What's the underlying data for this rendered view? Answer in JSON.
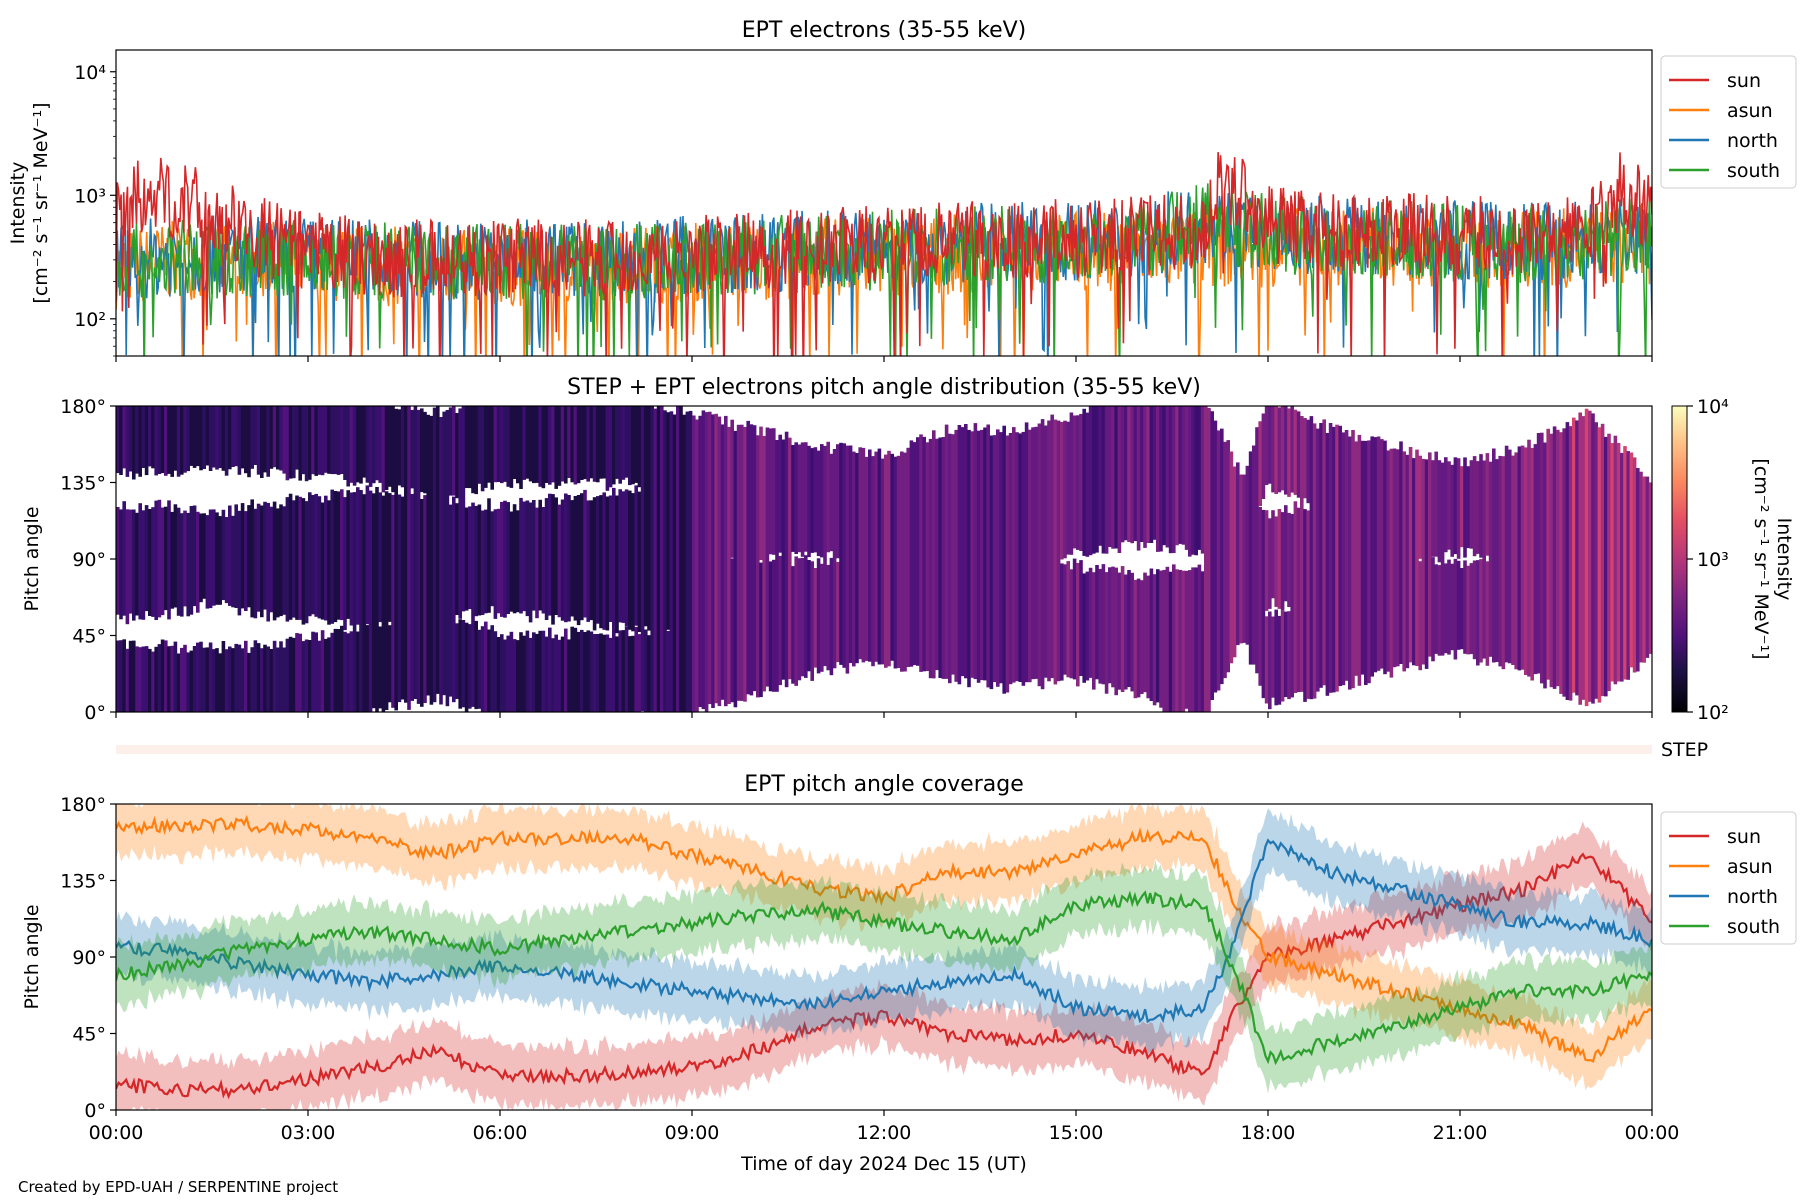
{
  "credit": "Created by EPD-UAH / SERPENTINE project",
  "x_axis_label": "Time of day 2024 Dec 15 (UT)",
  "x_tick_labels": [
    "00:00",
    "03:00",
    "06:00",
    "09:00",
    "12:00",
    "15:00",
    "18:00",
    "21:00",
    "00:00"
  ],
  "step_label": "STEP",
  "chart_data": [
    {
      "type": "line",
      "title": "EPT electrons (35-55 keV)",
      "ylabel_line1": "Intensity",
      "ylabel_line2": "[cm⁻² s⁻¹ sr⁻¹ MeV⁻¹]",
      "yscale": "log",
      "ylim": [
        50,
        15000
      ],
      "y_tick_labels": [
        "10²",
        "10³",
        "10⁴"
      ],
      "xlabel": "",
      "xlim_hours": [
        0,
        24
      ],
      "legend": "outside-right",
      "series": [
        {
          "name": "sun",
          "color": "#d62728",
          "x_hours": [
            0,
            0.5,
            1,
            2,
            3,
            4,
            5,
            6,
            7,
            8,
            9,
            10,
            11,
            12,
            13,
            14,
            15,
            16,
            17,
            17.3,
            18,
            19,
            20,
            21,
            22,
            23,
            23.5,
            24
          ],
          "y": [
            800,
            1000,
            900,
            500,
            350,
            320,
            300,
            310,
            300,
            320,
            330,
            350,
            380,
            400,
            420,
            430,
            450,
            470,
            500,
            1300,
            600,
            520,
            500,
            480,
            450,
            500,
            1100,
            700
          ]
        },
        {
          "name": "asun",
          "color": "#ff7f0e",
          "x_hours": [
            0,
            1,
            2,
            3,
            4,
            5,
            6,
            7,
            8,
            9,
            10,
            11,
            12,
            13,
            14,
            15,
            16,
            17,
            18,
            19,
            20,
            21,
            22,
            23,
            24
          ],
          "y": [
            250,
            300,
            300,
            280,
            270,
            260,
            260,
            270,
            280,
            290,
            300,
            310,
            320,
            330,
            340,
            350,
            360,
            370,
            380,
            390,
            380,
            370,
            360,
            380,
            400
          ]
        },
        {
          "name": "north",
          "color": "#1f77b4",
          "x_hours": [
            0,
            1,
            2,
            3,
            4,
            5,
            6,
            7,
            8,
            9,
            10,
            11,
            12,
            13,
            14,
            15,
            16,
            17,
            18,
            19,
            20,
            21,
            22,
            23,
            24
          ],
          "y": [
            300,
            320,
            330,
            320,
            310,
            300,
            300,
            310,
            320,
            330,
            340,
            360,
            380,
            400,
            420,
            430,
            440,
            600,
            500,
            470,
            450,
            430,
            420,
            450,
            500
          ]
        },
        {
          "name": "south",
          "color": "#2ca02c",
          "x_hours": [
            0,
            1,
            2,
            3,
            4,
            5,
            6,
            7,
            8,
            9,
            10,
            11,
            12,
            13,
            14,
            15,
            16,
            17,
            18,
            19,
            20,
            21,
            22,
            23,
            24
          ],
          "y": [
            280,
            300,
            310,
            300,
            290,
            280,
            280,
            290,
            300,
            310,
            320,
            340,
            360,
            380,
            400,
            410,
            420,
            650,
            480,
            450,
            430,
            420,
            410,
            440,
            480
          ]
        }
      ]
    },
    {
      "type": "heatmap",
      "title": "STEP + EPT electrons pitch angle distribution (35-55 keV)",
      "ylabel": "Pitch angle",
      "ylim": [
        0,
        180
      ],
      "y_tick_labels": [
        "0°",
        "45°",
        "90°",
        "135°",
        "180°"
      ],
      "xlim_hours": [
        0,
        24
      ],
      "colorscale": "magma",
      "color_log_range": [
        100,
        10000
      ],
      "colorbar_label_line1": "Intensity",
      "colorbar_label_line2": "[cm⁻² s⁻¹ sr⁻¹ MeV⁻¹]",
      "colorbar_tick_labels": [
        "10²",
        "10³",
        "10⁴"
      ]
    },
    {
      "type": "line",
      "title": "EPT pitch angle coverage",
      "ylabel": "Pitch angle",
      "ylim": [
        0,
        180
      ],
      "y_tick_labels": [
        "0°",
        "45°",
        "90°",
        "135°",
        "180°"
      ],
      "xlim_hours": [
        0,
        24
      ],
      "legend": "outside-right",
      "series": [
        {
          "name": "sun",
          "color": "#d62728",
          "x_hours": [
            0,
            1,
            2,
            3,
            4,
            5,
            6,
            7,
            8,
            9,
            10,
            11,
            12,
            13,
            14,
            15,
            16,
            17,
            17.5,
            18,
            19,
            20,
            21,
            22,
            23,
            24
          ],
          "y": [
            15,
            12,
            12,
            18,
            25,
            35,
            20,
            20,
            22,
            25,
            35,
            50,
            55,
            45,
            40,
            45,
            35,
            20,
            60,
            90,
            100,
            110,
            120,
            130,
            150,
            110
          ]
        },
        {
          "name": "asun",
          "color": "#ff7f0e",
          "x_hours": [
            0,
            1,
            2,
            3,
            4,
            5,
            6,
            7,
            8,
            9,
            10,
            11,
            12,
            13,
            14,
            15,
            16,
            17,
            17.5,
            18,
            19,
            20,
            21,
            22,
            23,
            24
          ],
          "y": [
            165,
            168,
            168,
            165,
            160,
            150,
            160,
            160,
            160,
            150,
            140,
            130,
            125,
            140,
            140,
            150,
            160,
            160,
            120,
            90,
            80,
            70,
            60,
            50,
            30,
            60
          ]
        },
        {
          "name": "north",
          "color": "#1f77b4",
          "x_hours": [
            0,
            1,
            2,
            3,
            4,
            5,
            6,
            7,
            8,
            9,
            10,
            11,
            12,
            13,
            14,
            15,
            16,
            17,
            17.5,
            18,
            19,
            20,
            21,
            22,
            23,
            24
          ],
          "y": [
            95,
            95,
            85,
            80,
            75,
            80,
            85,
            80,
            75,
            70,
            65,
            62,
            70,
            75,
            80,
            60,
            55,
            60,
            100,
            160,
            140,
            130,
            120,
            110,
            110,
            100
          ]
        },
        {
          "name": "south",
          "color": "#2ca02c",
          "x_hours": [
            0,
            1,
            2,
            3,
            4,
            5,
            6,
            7,
            8,
            9,
            10,
            11,
            12,
            13,
            14,
            15,
            16,
            17,
            17.5,
            18,
            19,
            20,
            21,
            22,
            23,
            24
          ],
          "y": [
            80,
            85,
            95,
            100,
            105,
            100,
            95,
            100,
            105,
            110,
            115,
            118,
            110,
            105,
            100,
            120,
            125,
            120,
            80,
            30,
            40,
            50,
            60,
            70,
            70,
            80
          ]
        }
      ]
    }
  ]
}
